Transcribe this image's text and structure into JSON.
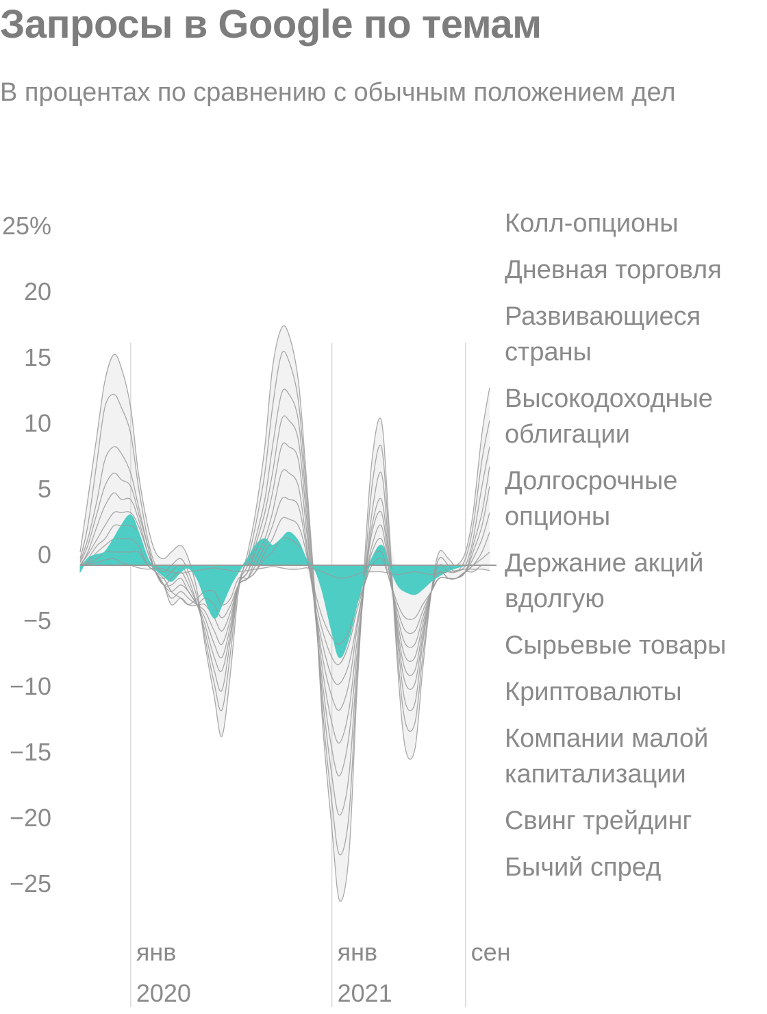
{
  "title": "Запросы в Google по темам",
  "subtitle": "В процентах по сравнению с обычным положением дел",
  "chart_data": {
    "type": "area",
    "title": "Запросы в Google по темам",
    "subtitle": "В процентах по сравнению с обычным положением дел",
    "ylim": [
      -27,
      27
    ],
    "y_ticks": [
      25,
      20,
      15,
      10,
      5,
      0,
      -5,
      -10,
      -15,
      -20,
      -25
    ],
    "y_tick_labels": [
      "25%",
      "20",
      "15",
      "10",
      "5",
      "0",
      "−5",
      "−10",
      "−15",
      "−20",
      "−25"
    ],
    "x_range": [
      "2019-10-01",
      "2021-10-15"
    ],
    "x_ticks": [
      {
        "date": "2020-01-01",
        "label": "янв",
        "year": "2020"
      },
      {
        "date": "2021-01-01",
        "label": "янв",
        "year": "2021"
      },
      {
        "date": "2021-09-01",
        "label": "сен",
        "year": ""
      }
    ],
    "legend_position": "right",
    "highlight_color": "#4ecdc4",
    "series_color": "#9a9a9a",
    "fill_color": "#f2f2f2",
    "x": [
      "2019-10-01",
      "2019-10-15",
      "2019-11-01",
      "2019-11-15",
      "2019-12-01",
      "2019-12-15",
      "2020-01-01",
      "2020-01-15",
      "2020-02-01",
      "2020-02-15",
      "2020-03-01",
      "2020-03-15",
      "2020-04-01",
      "2020-04-15",
      "2020-05-01",
      "2020-05-15",
      "2020-06-01",
      "2020-06-15",
      "2020-07-01",
      "2020-07-15",
      "2020-08-01",
      "2020-08-15",
      "2020-09-01",
      "2020-09-15",
      "2020-10-01",
      "2020-10-15",
      "2020-11-01",
      "2020-11-15",
      "2020-12-01",
      "2020-12-15",
      "2021-01-01",
      "2021-01-15",
      "2021-02-01",
      "2021-02-15",
      "2021-03-01",
      "2021-03-15",
      "2021-04-01",
      "2021-04-15",
      "2021-05-01",
      "2021-05-15",
      "2021-06-01",
      "2021-06-15",
      "2021-07-01",
      "2021-07-15",
      "2021-08-01",
      "2021-08-15",
      "2021-09-01",
      "2021-09-15",
      "2021-10-01",
      "2021-10-15"
    ],
    "series": [
      {
        "name": "Колл-опционы",
        "values": [
          1,
          5,
          10,
          14,
          16,
          15,
          12,
          7,
          3,
          1,
          0.5,
          1,
          1.5,
          0.5,
          -2,
          -6,
          -10,
          -13,
          -8,
          -2,
          1,
          4,
          9,
          15,
          18,
          17.5,
          14,
          7,
          -2,
          -12,
          -20,
          -25.5,
          -22,
          -10,
          0,
          8,
          11,
          3,
          -8,
          -14,
          -14,
          -8,
          -2,
          1,
          0.5,
          0,
          1,
          4,
          10,
          13.5
        ]
      },
      {
        "name": "Дневная торговля",
        "values": [
          0.5,
          3,
          8,
          12,
          13,
          12,
          10,
          6,
          2,
          0,
          -0.5,
          0,
          0.5,
          -0.5,
          -2.5,
          -5.5,
          -9,
          -11,
          -6.5,
          -1.5,
          0.5,
          3,
          7,
          12,
          16,
          15.5,
          12.5,
          6,
          -2.5,
          -11,
          -18,
          -22,
          -19,
          -9,
          -1,
          6,
          9,
          2,
          -7,
          -12,
          -12,
          -7,
          -2,
          0.5,
          0,
          -0.5,
          0.5,
          3,
          8,
          11
        ]
      },
      {
        "name": "Развивающиеся страны",
        "values": [
          0.3,
          2,
          5,
          8,
          9,
          8.5,
          7,
          4.5,
          1.5,
          -0.5,
          -1,
          -0.5,
          0,
          -1,
          -3,
          -5,
          -8,
          -9.5,
          -5.5,
          -1.5,
          0,
          2,
          5,
          9,
          13,
          13,
          11,
          5,
          -3,
          -10,
          -16,
          -19,
          -16,
          -8,
          -1.5,
          4,
          7,
          1,
          -6,
          -10.5,
          -10.5,
          -6,
          -2,
          0,
          -0.5,
          -0.5,
          0,
          2,
          6,
          9
        ]
      },
      {
        "name": "Высокодоходные облигации",
        "values": [
          0.2,
          1.5,
          4,
          6,
          7,
          6.5,
          6,
          4,
          1.5,
          -0.5,
          -1.5,
          -1,
          -0.5,
          -1.5,
          -3,
          -4.5,
          -7,
          -8,
          -5,
          -1.5,
          -0.5,
          1.5,
          4,
          7,
          11,
          11,
          9.5,
          4,
          -3.5,
          -9,
          -14,
          -16,
          -13,
          -7,
          -1.5,
          3,
          5,
          0.5,
          -5.5,
          -9,
          -9,
          -5.5,
          -2,
          -0.5,
          -1,
          -1,
          -0.5,
          1.5,
          4,
          7.5
        ]
      },
      {
        "name": "Долгосрочные опционы",
        "values": [
          0,
          1,
          3,
          4.5,
          5.5,
          5,
          5,
          3.5,
          1,
          -0.5,
          -1.5,
          -1.5,
          -1,
          -2,
          -3,
          -4,
          -6,
          -7,
          -4.5,
          -1.5,
          -0.5,
          1,
          3,
          5.5,
          9,
          9,
          8,
          3,
          -3,
          -8,
          -12,
          -13.5,
          -11,
          -6,
          -1.5,
          2.5,
          4,
          0,
          -5,
          -8,
          -8,
          -5,
          -2,
          -0.5,
          -1,
          -1,
          -0.5,
          1,
          3,
          6
        ]
      },
      {
        "name": "Держание акций вдолгую",
        "values": [
          0,
          0.8,
          2,
          3,
          4,
          4,
          4,
          3,
          1,
          -0.5,
          -1.5,
          -2,
          -1.5,
          -2,
          -3,
          -3.5,
          -5,
          -6,
          -4,
          -1.5,
          -1,
          0.5,
          2,
          4,
          7,
          7,
          6,
          2,
          -3,
          -7,
          -10,
          -11,
          -9,
          -5,
          -1.5,
          1.5,
          3,
          -0.5,
          -4.5,
          -7,
          -7,
          -4.5,
          -2,
          -1,
          -1,
          -1,
          -0.5,
          0.5,
          2,
          4
        ]
      },
      {
        "name": "Сырьевые товары",
        "values": [
          0,
          0.5,
          1.5,
          2,
          3,
          3,
          3,
          2.5,
          0.5,
          -0.5,
          -1.5,
          -2.5,
          -2,
          -2.5,
          -3,
          -3,
          -4,
          -5,
          -3.5,
          -1.5,
          -1,
          0,
          1.5,
          3,
          5,
          5,
          4.5,
          1.5,
          -3,
          -6,
          -8.5,
          -9,
          -7.5,
          -4.5,
          -1.5,
          1,
          2,
          -0.5,
          -4,
          -6,
          -6,
          -4,
          -2,
          -1,
          -1,
          -1,
          -0.5,
          0,
          1,
          2.5
        ]
      },
      {
        "name": "Криптовалюты",
        "values": [
          0,
          0.3,
          1,
          1.5,
          2,
          2,
          2,
          1.5,
          0,
          -0.5,
          -1.5,
          -3,
          -2.5,
          -3,
          -3,
          -2.5,
          -3,
          -4,
          -3,
          -1.5,
          -1,
          -0.5,
          1,
          2,
          3.5,
          3.5,
          3,
          1,
          -2.5,
          -5,
          -7,
          -7.5,
          -6,
          -3.5,
          -1.5,
          0.5,
          1,
          -1,
          -3.5,
          -5,
          -5,
          -3.5,
          -2,
          -1,
          -1,
          -1,
          -0.5,
          0,
          0.5,
          1
        ]
      },
      {
        "name": "Компании малой капитализации",
        "values": [
          0,
          0.2,
          0.5,
          1,
          1,
          1,
          1,
          1,
          0,
          -0.5,
          -1,
          -2,
          -2.5,
          -3,
          -2.5,
          -2,
          -2,
          -3,
          -2.5,
          -1,
          -1,
          -0.5,
          0.5,
          1,
          2,
          2,
          1.5,
          0.5,
          -2,
          -4,
          -5.5,
          -6,
          -5,
          -3,
          -1.5,
          0,
          0.5,
          -1,
          -3,
          -4,
          -4,
          -3,
          -2,
          -1,
          -1,
          -1,
          -0.5,
          -0.5,
          0,
          0
        ]
      },
      {
        "name": "Свинг трейдинг",
        "values": [
          -0.5,
          0.5,
          0.8,
          1,
          2,
          3,
          3.8,
          2.5,
          0.5,
          -0.3,
          -0.8,
          -1.2,
          -0.5,
          -0.2,
          -1,
          -2.5,
          -4,
          -3,
          -1.5,
          -0.5,
          0.5,
          1.5,
          2,
          1.5,
          2,
          2.5,
          1.8,
          0.5,
          -0.3,
          -2,
          -5,
          -7,
          -5.5,
          -3,
          -1,
          0.5,
          1.5,
          0,
          -1.5,
          -2,
          -2.2,
          -1.8,
          -1.2,
          -0.8,
          -0.4,
          -0.2,
          0,
          0,
          0,
          0
        ]
      },
      {
        "name": "Бычий спред",
        "values": [
          0,
          0.1,
          0.2,
          0.4,
          0.5,
          0.2,
          0,
          -0.2,
          -0.3,
          -0.2,
          -0.3,
          -0.5,
          -0.6,
          -0.5,
          -0.4,
          -0.3,
          -0.2,
          -0.3,
          -0.4,
          -0.5,
          -0.4,
          -0.3,
          -0.2,
          -0.1,
          -0.2,
          -0.3,
          -0.3,
          -0.2,
          -0.3,
          -0.5,
          -0.8,
          -1,
          -0.9,
          -0.7,
          -0.5,
          -0.5,
          -0.5,
          -0.6,
          -0.7,
          -0.6,
          -0.5,
          -0.6,
          -0.7,
          -0.6,
          -0.5,
          -0.4,
          -0.3,
          -0.3,
          -0.3,
          -0.4
        ]
      }
    ]
  }
}
